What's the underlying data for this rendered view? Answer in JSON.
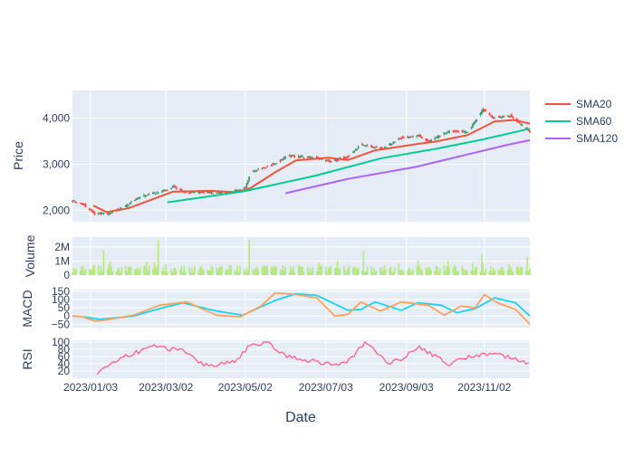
{
  "chart_data": {
    "type": "candlestick_with_indicators",
    "xlabel": "Date",
    "x_ticks": [
      "2023/01/03",
      "2023/03/02",
      "2023/05/02",
      "2023/07/03",
      "2023/09/03",
      "2023/11/02"
    ],
    "x_range": [
      "2022/12/20",
      "2023/12/07"
    ],
    "colors": {
      "increasing": "#3d9970",
      "decreasing": "#ff4136",
      "sma20": "#ef553b",
      "sma60": "#00cc96",
      "sma120": "#ab63fa",
      "macd": "#ffa15a",
      "signal": "#19d3f3",
      "rsi": "#ff6692",
      "volume": "#b6e880",
      "panel_bg": "#e5ecf6"
    },
    "legend": {
      "placement": "top-right",
      "entries": [
        "SMA20",
        "SMA60",
        "SMA120"
      ]
    },
    "panels": {
      "price": {
        "ylabel": "Price",
        "ylim": [
          1750,
          4600
        ],
        "ticks": [
          {
            "v": 2000,
            "label": "2,000"
          },
          {
            "v": 3000,
            "label": "3,000"
          },
          {
            "v": 4000,
            "label": "4,000"
          }
        ],
        "close_anchors": [
          [
            "2022/12/20",
            2200
          ],
          [
            "2022/12/29",
            2120
          ],
          [
            "2023/01/06",
            1920
          ],
          [
            "2023/01/16",
            1930
          ],
          [
            "2023/01/28",
            2060
          ],
          [
            "2023/02/10",
            2290
          ],
          [
            "2023/02/28",
            2420
          ],
          [
            "2023/03/08",
            2510
          ],
          [
            "2023/03/16",
            2390
          ],
          [
            "2023/04/01",
            2390
          ],
          [
            "2023/04/18",
            2370
          ],
          [
            "2023/05/02",
            2490
          ],
          [
            "2023/05/06",
            2830
          ],
          [
            "2023/05/24",
            3000
          ],
          [
            "2023/06/03",
            3180
          ],
          [
            "2023/06/26",
            3140
          ],
          [
            "2023/07/06",
            3050
          ],
          [
            "2023/07/20",
            3170
          ],
          [
            "2023/07/30",
            3420
          ],
          [
            "2023/08/17",
            3330
          ],
          [
            "2023/08/28",
            3560
          ],
          [
            "2023/09/12",
            3620
          ],
          [
            "2023/09/20",
            3500
          ],
          [
            "2023/10/06",
            3720
          ],
          [
            "2023/10/20",
            3700
          ],
          [
            "2023/11/01",
            4180
          ],
          [
            "2023/11/09",
            4000
          ],
          [
            "2023/11/22",
            4060
          ],
          [
            "2023/12/07",
            3700
          ]
        ],
        "sma20": [
          [
            "2023/01/05",
            2100
          ],
          [
            "2023/01/15",
            1960
          ],
          [
            "2023/02/01",
            2040
          ],
          [
            "2023/03/07",
            2400
          ],
          [
            "2023/04/05",
            2420
          ],
          [
            "2023/04/25",
            2390
          ],
          [
            "2023/05/06",
            2480
          ],
          [
            "2023/05/26",
            2840
          ],
          [
            "2023/06/10",
            3080
          ],
          [
            "2023/07/05",
            3140
          ],
          [
            "2023/07/20",
            3090
          ],
          [
            "2023/08/10",
            3300
          ],
          [
            "2023/09/12",
            3440
          ],
          [
            "2023/09/25",
            3490
          ],
          [
            "2023/10/20",
            3630
          ],
          [
            "2023/11/10",
            3930
          ],
          [
            "2023/11/25",
            3960
          ],
          [
            "2023/12/07",
            3880
          ]
        ],
        "sma60": [
          [
            "2023/03/03",
            2170
          ],
          [
            "2023/05/01",
            2410
          ],
          [
            "2023/06/25",
            2750
          ],
          [
            "2023/08/15",
            3130
          ],
          [
            "2023/09/25",
            3330
          ],
          [
            "2023/10/31",
            3530
          ],
          [
            "2023/12/07",
            3770
          ]
        ],
        "sma120": [
          [
            "2023/06/02",
            2370
          ],
          [
            "2023/07/20",
            2680
          ],
          [
            "2023/09/10",
            2940
          ],
          [
            "2023/10/20",
            3210
          ],
          [
            "2023/11/20",
            3420
          ],
          [
            "2023/12/07",
            3520
          ]
        ]
      },
      "volume": {
        "ylabel": "Volume",
        "ylim": [
          0,
          2700000
        ],
        "ticks": [
          {
            "v": 0,
            "label": "0"
          },
          {
            "v": 1000000,
            "label": "1M"
          },
          {
            "v": 2000000,
            "label": "2M"
          }
        ],
        "spikes": [
          [
            "2023/01/13",
            1800000
          ],
          [
            "2023/01/28",
            1500000
          ],
          [
            "2023/02/24",
            2500000
          ],
          [
            "2023/05/05",
            2500000
          ],
          [
            "2023/06/11",
            2300000
          ],
          [
            "2023/08/01",
            1700000
          ],
          [
            "2023/10/31",
            1500000
          ],
          [
            "2023/12/05",
            1300000
          ]
        ]
      },
      "macd": {
        "ylabel": "MACD",
        "ylim": [
          -70,
          160
        ],
        "ticks": [
          {
            "v": -50,
            "label": "−50"
          },
          {
            "v": 0,
            "label": "0"
          },
          {
            "v": 50,
            "label": "50"
          },
          {
            "v": 100,
            "label": "100"
          },
          {
            "v": 150,
            "label": "150"
          }
        ],
        "macd": [
          [
            "2022/12/20",
            0
          ],
          [
            "2022/12/28",
            -5
          ],
          [
            "2023/01/06",
            -30
          ],
          [
            "2023/01/14",
            -25
          ],
          [
            "2023/02/05",
            5
          ],
          [
            "2023/02/25",
            65
          ],
          [
            "2023/03/18",
            85
          ],
          [
            "2023/04/10",
            5
          ],
          [
            "2023/04/28",
            -5
          ],
          [
            "2023/05/14",
            60
          ],
          [
            "2023/05/25",
            140
          ],
          [
            "2023/06/10",
            130
          ],
          [
            "2023/06/26",
            110
          ],
          [
            "2023/07/10",
            0
          ],
          [
            "2023/07/20",
            10
          ],
          [
            "2023/07/30",
            85
          ],
          [
            "2023/08/14",
            30
          ],
          [
            "2023/08/30",
            85
          ],
          [
            "2023/09/20",
            65
          ],
          [
            "2023/10/02",
            5
          ],
          [
            "2023/10/15",
            60
          ],
          [
            "2023/10/26",
            50
          ],
          [
            "2023/11/02",
            130
          ],
          [
            "2023/11/12",
            80
          ],
          [
            "2023/11/26",
            40
          ],
          [
            "2023/12/07",
            -50
          ]
        ],
        "signal": [
          [
            "2022/12/29",
            -5
          ],
          [
            "2023/01/10",
            -20
          ],
          [
            "2023/02/05",
            0
          ],
          [
            "2023/02/25",
            45
          ],
          [
            "2023/03/15",
            80
          ],
          [
            "2023/04/10",
            30
          ],
          [
            "2023/04/30",
            5
          ],
          [
            "2023/05/25",
            95
          ],
          [
            "2023/06/10",
            135
          ],
          [
            "2023/06/26",
            125
          ],
          [
            "2023/07/20",
            35
          ],
          [
            "2023/07/30",
            40
          ],
          [
            "2023/08/10",
            85
          ],
          [
            "2023/08/30",
            35
          ],
          [
            "2023/09/12",
            80
          ],
          [
            "2023/09/30",
            65
          ],
          [
            "2023/10/12",
            20
          ],
          [
            "2023/10/26",
            45
          ],
          [
            "2023/11/10",
            110
          ],
          [
            "2023/11/26",
            80
          ],
          [
            "2023/12/07",
            0
          ]
        ]
      },
      "rsi": {
        "ylabel": "RSI",
        "ylim": [
          0,
          105
        ],
        "ticks": [
          {
            "v": 20,
            "label": "20"
          },
          {
            "v": 40,
            "label": "40"
          },
          {
            "v": 60,
            "label": "60"
          },
          {
            "v": 80,
            "label": "80"
          },
          {
            "v": 100,
            "label": "100"
          }
        ],
        "values": [
          [
            "2023/01/08",
            8
          ],
          [
            "2023/01/14",
            30
          ],
          [
            "2023/01/28",
            60
          ],
          [
            "2023/02/10",
            75
          ],
          [
            "2023/02/22",
            90
          ],
          [
            "2023/03/09",
            78
          ],
          [
            "2023/03/16",
            75
          ],
          [
            "2023/03/28",
            40
          ],
          [
            "2023/04/10",
            35
          ],
          [
            "2023/04/25",
            50
          ],
          [
            "2023/05/06",
            92
          ],
          [
            "2023/05/20",
            95
          ],
          [
            "2023/06/03",
            60
          ],
          [
            "2023/06/26",
            45
          ],
          [
            "2023/07/10",
            38
          ],
          [
            "2023/07/20",
            45
          ],
          [
            "2023/08/02",
            98
          ],
          [
            "2023/08/10",
            75
          ],
          [
            "2023/08/22",
            40
          ],
          [
            "2023/09/02",
            60
          ],
          [
            "2023/09/12",
            88
          ],
          [
            "2023/09/26",
            60
          ],
          [
            "2023/10/06",
            38
          ],
          [
            "2023/10/20",
            60
          ],
          [
            "2023/11/01",
            65
          ],
          [
            "2023/11/10",
            70
          ],
          [
            "2023/11/24",
            55
          ],
          [
            "2023/12/07",
            35
          ]
        ]
      }
    }
  }
}
